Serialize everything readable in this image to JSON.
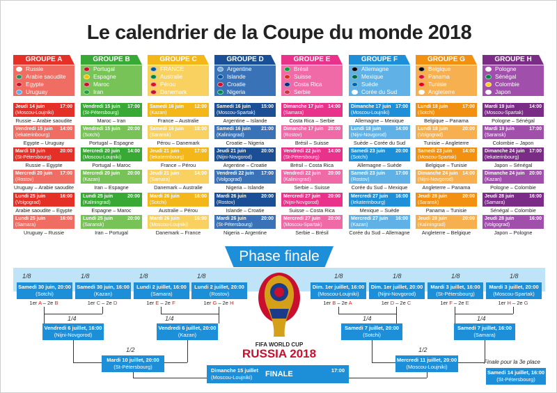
{
  "title": "Le calendrier de la Coupe du monde 2018",
  "groups": [
    {
      "name": "GROUPE A",
      "color": "#e53027",
      "light": "#f06d63",
      "teams": [
        "Russie",
        "Arabie saoudite",
        "Egypte",
        "Uruguay"
      ],
      "matches": [
        {
          "date": "Jeudi 14 juin",
          "city": "(Moscou-Loujniki)",
          "time": "17:00",
          "teams": "Russie – Arabie saoudite"
        },
        {
          "date": "Vendredi 15 juin",
          "city": "(Iekaterinbourg)",
          "time": "14:00",
          "teams": "Egypte – Uruguay"
        },
        {
          "date": "Mardi 19 juin",
          "city": "(St-Pétersbourg)",
          "time": "20:00",
          "teams": "Russie – Egypte"
        },
        {
          "date": "Mercredi 20 juin",
          "city": "(Rostov)",
          "time": "17:00",
          "teams": "Uruguay – Arabie saoudite"
        },
        {
          "date": "Lundi 25 juin",
          "city": "(Volgograd)",
          "time": "16:00",
          "teams": "Arabie saoudite – Egypte"
        },
        {
          "date": "Lundi 25 juin",
          "city": "(Samara)",
          "time": "16:00",
          "teams": "Uruguay – Russie"
        }
      ]
    },
    {
      "name": "GROUPE B",
      "color": "#39a935",
      "light": "#78c357",
      "teams": [
        "Portugal",
        "Espagne",
        "Maroc",
        "Iran"
      ],
      "matches": [
        {
          "date": "Vendredi 15 juin",
          "city": "(St-Pétersbourg)",
          "time": "17:00",
          "teams": "Maroc – Iran"
        },
        {
          "date": "Vendredi 15 juin",
          "city": "(Sotchi)",
          "time": "20:00",
          "teams": "Portugal – Espagne"
        },
        {
          "date": "Mercredi 20 juin",
          "city": "(Moscou-Loujniki)",
          "time": "14:00",
          "teams": "Portugal – Maroc"
        },
        {
          "date": "Mercredi 20 juin",
          "city": "(Kazan)",
          "time": "20:00",
          "teams": "Iran – Espagne"
        },
        {
          "date": "Lundi 25 juin",
          "city": "(Kaliningrad)",
          "time": "20:00",
          "teams": "Espagne – Maroc"
        },
        {
          "date": "Lundi 25 juin",
          "city": "(Saransk)",
          "time": "20:00",
          "teams": "Iran – Portugal"
        }
      ]
    },
    {
      "name": "GROUPE C",
      "color": "#f3b71a",
      "light": "#f8d160",
      "teams": [
        "FRANCE",
        "Australie",
        "Pérou",
        "Danemark"
      ],
      "matches": [
        {
          "date": "Samedi 16 juin",
          "city": "(Kazan)",
          "time": "12:00",
          "teams": "France – Australie"
        },
        {
          "date": "Samedi 16 juin",
          "city": "(Saransk)",
          "time": "18:00",
          "teams": "Pérou – Danemark"
        },
        {
          "date": "Jeudi 21 juin",
          "city": "(Iekaterinbourg)",
          "time": "17:00",
          "teams": "France – Pérou"
        },
        {
          "date": "Jeudi 21 juin",
          "city": "(Samara)",
          "time": "14:00",
          "teams": "Danemark – Australie"
        },
        {
          "date": "Mardi 26 juin",
          "city": "(Sotchi)",
          "time": "16:00",
          "teams": "Australie – Pérou"
        },
        {
          "date": "Mardi 26 juin",
          "city": "(Moscou-Loujniki)",
          "time": "16:00",
          "teams": "Danemark – France"
        }
      ]
    },
    {
      "name": "GROUPE D",
      "color": "#1a4f95",
      "light": "#3a72b8",
      "teams": [
        "Argentine",
        "Islande",
        "Croatie",
        "Nigeria"
      ],
      "matches": [
        {
          "date": "Samedi 16 juin",
          "city": "(Moscou-Spartak)",
          "time": "15:00",
          "teams": "Argentine – Islande"
        },
        {
          "date": "Samedi 16 juin",
          "city": "(Kaliningrad)",
          "time": "21:00",
          "teams": "Croatie – Nigeria"
        },
        {
          "date": "Jeudi 21 juin",
          "city": "(Nijni-Novgorod)",
          "time": "20:00",
          "teams": "Argentine – Croatie"
        },
        {
          "date": "Vendredi 22 juin",
          "city": "(Volgograd)",
          "time": "17:00",
          "teams": "Nigeria – Islande"
        },
        {
          "date": "Mardi 26 juin",
          "city": "(Rostov)",
          "time": "20:00",
          "teams": "Islande – Croatie"
        },
        {
          "date": "Mardi 26 juin",
          "city": "(St-Pétersbourg)",
          "time": "20:00",
          "teams": "Nigeria – Argentine"
        }
      ]
    },
    {
      "name": "GROUPE E",
      "color": "#e9338a",
      "light": "#f06aa8",
      "teams": [
        "Brésil",
        "Suisse",
        "Costa Rica",
        "Serbie"
      ],
      "matches": [
        {
          "date": "Dimanche 17 juin",
          "city": "(Samara)",
          "time": "14:00",
          "teams": "Costa Rica – Serbie"
        },
        {
          "date": "Dimanche 17 juin",
          "city": "(Rostov)",
          "time": "20:00",
          "teams": "Brésil – Suisse"
        },
        {
          "date": "Vendredi 22 juin",
          "city": "(St-Pétersbourg)",
          "time": "14:00",
          "teams": "Brésil – Costa Rica"
        },
        {
          "date": "Vendredi 22 juin",
          "city": "(Kaliningrad)",
          "time": "20:00",
          "teams": "Serbie – Suisse"
        },
        {
          "date": "Mercredi 27 juin",
          "city": "(Nijni-Novgorod)",
          "time": "20:00",
          "teams": "Suisse – Costa Rica"
        },
        {
          "date": "Mercredi 27 juin",
          "city": "(Moscou-Spartak)",
          "time": "20:00",
          "teams": "Serbie – Brésil"
        }
      ]
    },
    {
      "name": "GROUPE F",
      "color": "#1d8fd9",
      "light": "#5fb1e6",
      "teams": [
        "Allemagne",
        "Mexique",
        "Suède",
        "Corée du Sud"
      ],
      "matches": [
        {
          "date": "Dimanche 17 juin",
          "city": "(Moscou-Loujniki)",
          "time": "17:00",
          "teams": "Allemagne – Mexique"
        },
        {
          "date": "Lundi 18 juin",
          "city": "(Nijni-Novgorod)",
          "time": "14:00",
          "teams": "Suède – Corée du Sud"
        },
        {
          "date": "Samedi 23 juin",
          "city": "(Sotchi)",
          "time": "20:00",
          "teams": "Allemagne – Suède"
        },
        {
          "date": "Samedi 23 juin",
          "city": "(Rostov)",
          "time": "17:00",
          "teams": "Corée du Sud – Mexique"
        },
        {
          "date": "Mercredi 27 juin",
          "city": "(Iekaterinbourg)",
          "time": "16:00",
          "teams": "Mexique – Suède"
        },
        {
          "date": "Mercredi 27 juin",
          "city": "(Kazan)",
          "time": "16:00",
          "teams": "Corée du Sud – Allemagne"
        }
      ]
    },
    {
      "name": "GROUPE G",
      "color": "#f29111",
      "light": "#f6b050",
      "teams": [
        "Belgique",
        "Panama",
        "Tunisie",
        "Angleterre"
      ],
      "matches": [
        {
          "date": "Lundi 18 juin",
          "city": "(Sotchi)",
          "time": "17:00",
          "teams": "Belgique – Panama"
        },
        {
          "date": "Lundi 18 juin",
          "city": "(Volgograd)",
          "time": "20:00",
          "teams": "Tunisie – Angleterre"
        },
        {
          "date": "Samedi 23 juin",
          "city": "(Moscou-Spartak)",
          "time": "14:00",
          "teams": "Belgique – Tunisie"
        },
        {
          "date": "Dimanche 24 juin",
          "city": "(Nijni-Novgorod)",
          "time": "14:00",
          "teams": "Angleterre – Panama"
        },
        {
          "date": "Jeudi 28 juin",
          "city": "(Saransk)",
          "time": "20:00",
          "teams": "Panama – Tunisie"
        },
        {
          "date": "Jeudi 28 juin",
          "city": "(Kaliningrad)",
          "time": "20:00",
          "teams": "Angleterre – Belgique"
        }
      ]
    },
    {
      "name": "GROUPE H",
      "color": "#7b2c87",
      "light": "#a050ab",
      "teams": [
        "Pologne",
        "Sénégal",
        "Colombie",
        "Japon"
      ],
      "matches": [
        {
          "date": "Mardi 19 juin",
          "city": "(Moscou-Spartak)",
          "time": "14:00",
          "teams": "Pologne – Sénégal"
        },
        {
          "date": "Mardi 19 juin",
          "city": "(Saransk)",
          "time": "17:00",
          "teams": "Colombie – Japon"
        },
        {
          "date": "Dimanche 24 juin",
          "city": "(Iekaterinbourg)",
          "time": "17:00",
          "teams": "Japon – Sénégal"
        },
        {
          "date": "Dimanche 24 juin",
          "city": "(Kazan)",
          "time": "20:00",
          "teams": "Pologne – Colombie"
        },
        {
          "date": "Jeudi 28 juin",
          "city": "(Samara)",
          "time": "16:00",
          "teams": "Sénégal – Colombie"
        },
        {
          "date": "Jeudi 28 juin",
          "city": "(Volgograd)",
          "time": "16:00",
          "teams": "Japon – Pologne"
        }
      ]
    }
  ],
  "phase_finale": "Phase finale",
  "labels": {
    "eighth": "1/8",
    "quarter": "1/4",
    "semi": "1/2"
  },
  "round16_left": [
    {
      "date": "Samedi 30 juin, 20:00",
      "city": "(Sotchi)",
      "a": "1er",
      "ag": "A",
      "b": "2e",
      "bg": "B"
    },
    {
      "date": "Samedi 30 juin, 16:00",
      "city": "(Kazan)",
      "a": "1er",
      "ag": "C",
      "b": "2e",
      "bg": "D"
    },
    {
      "date": "Lundi 2 juillet, 16:00",
      "city": "(Samara)",
      "a": "1er",
      "ag": "E",
      "b": "2e",
      "bg": "F"
    },
    {
      "date": "Lundi 2 juillet, 20:00",
      "city": "(Rostov)",
      "a": "1er",
      "ag": "G",
      "b": "2e",
      "bg": "H"
    }
  ],
  "round16_right": [
    {
      "date": "Dim. 1er juillet, 16:00",
      "city": "(Moscou-Loujniki)",
      "a": "1er",
      "ag": "B",
      "b": "2e",
      "bg": "A"
    },
    {
      "date": "Dim. 1er juillet, 20:00",
      "city": "(Nijni-Novgorod)",
      "a": "1er",
      "ag": "D",
      "b": "2e",
      "bg": "C"
    },
    {
      "date": "Mardi 3 juillet, 16:00",
      "city": "(St-Pétersbourg)",
      "a": "1er",
      "ag": "F",
      "b": "2e",
      "bg": "E"
    },
    {
      "date": "Mardi 3 juillet, 20:00",
      "city": "(Moscou-Spartak)",
      "a": "1er",
      "ag": "H",
      "b": "2e",
      "bg": "G"
    }
  ],
  "quarters": [
    {
      "date": "Vendredi 6 juillet, 16:00",
      "city": "(Nijni-Novgorod)"
    },
    {
      "date": "Vendredi 6 juillet, 20:00",
      "city": "(Kazan)"
    },
    {
      "date": "Samedi 7 juillet, 20:00",
      "city": "(Sotchi)"
    },
    {
      "date": "Samedi 7 juillet, 16:00",
      "city": "(Samara)"
    }
  ],
  "semis": [
    {
      "date": "Mardi 10 juillet, 20:00",
      "city": "(St-Pétersbourg)"
    },
    {
      "date": "Mercredi 11 juillet, 20:00",
      "city": "(Moscou-Loujniki)"
    }
  ],
  "final": {
    "date": "Dimanche 15 juillet",
    "city": "(Moscou-Loujniki)",
    "label": "FINALE",
    "time": "17:00"
  },
  "third": {
    "label": "Finale pour la 3e place",
    "date": "Samedi 14 juillet, 16:00",
    "city": "(St-Pétersbourg)"
  },
  "logo": {
    "line1": "FIFA WORLD CUP",
    "line2": "RUSSIA 2018"
  }
}
